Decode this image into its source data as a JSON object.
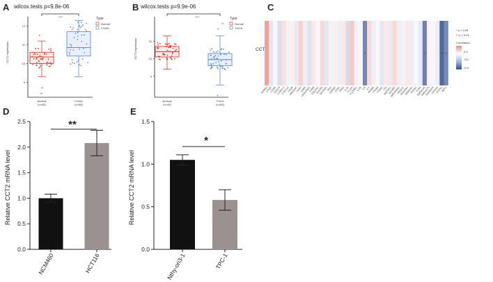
{
  "chart_data": [
    {
      "panel": "A",
      "type": "box",
      "title": "wilcox.tests p=9.8e-06",
      "ylabel": "CCT2 expression",
      "ylim": [
        8.2,
        12.5
      ],
      "yticks": [
        9,
        10,
        11,
        12
      ],
      "legend_title": "Type",
      "significance": "****",
      "groups": [
        {
          "name": "Normal",
          "n_label": "(n=55)",
          "color": "#d83b2b",
          "min": 9.3,
          "q1": 10.0,
          "median": 10.35,
          "q3": 10.6,
          "max": 11.2,
          "outliers": [
            8.7,
            8.4,
            11.5
          ]
        },
        {
          "name": "COAD",
          "n_label": "(n=56)",
          "color": "#5b8dd6",
          "min": 9.3,
          "q1": 10.4,
          "median": 10.85,
          "q3": 11.7,
          "max": 12.3,
          "outliers": []
        }
      ]
    },
    {
      "panel": "B",
      "type": "box",
      "title": "wilcox.tests p=9.9e-06",
      "ylabel": "CCT2 expression",
      "ylim": [
        7.8,
        12.4
      ],
      "yticks": [
        9,
        10,
        11
      ],
      "legend_title": "Type",
      "significance": "****",
      "groups": [
        {
          "name": "Normal",
          "n_label": "(n=45)",
          "color": "#d83b2b",
          "min": 9.4,
          "q1": 10.1,
          "median": 10.4,
          "q3": 10.7,
          "max": 11.3,
          "outliers": []
        },
        {
          "name": "THCA",
          "n_label": "(n=60)",
          "color": "#5b8dd6",
          "min": 8.5,
          "q1": 9.6,
          "median": 9.95,
          "q3": 10.3,
          "max": 11.3,
          "outliers": [
            7.9,
            11.7,
            12.0
          ]
        }
      ]
    },
    {
      "panel": "C",
      "type": "heatmap",
      "row_label": "CCT2",
      "legend_title": "Correlation",
      "legend_ticks": [
        "0.0",
        "-0.2",
        "-0.4"
      ],
      "legend_range": [
        -0.45,
        0.15
      ],
      "sig_legend": [
        "* p < 0.05",
        "** p < 0.01"
      ],
      "columns": [
        "ADRB1",
        "CTNE",
        "CCR5",
        "CD274",
        "CX3CL1",
        "CXCL12",
        "CD28",
        "ARHGAP",
        "CD44",
        "CD80",
        "CEACAM1",
        "CD86",
        "COL4A1",
        "CXCR4",
        "ENTPD1",
        "FAS",
        "GPR82",
        "ICOS",
        "IFNG",
        "IL10",
        "IL12A",
        "IL12RB1",
        "IL1B",
        "IL6",
        "IL7",
        "INHBB",
        "ITGA6",
        "ITGB1",
        "LTA",
        "MAP2K1",
        "MCHR1",
        "MIR155HG",
        "PDCD1",
        "PDGFRA",
        "SEMA3A",
        "TGFB1",
        "TLR4",
        "TMEM140",
        "TMEM173",
        "TNFRSF4",
        "VEGFA",
        "VTCN1",
        "ZBP1"
      ],
      "values": [
        0.12,
        -0.06,
        -0.02,
        -0.08,
        0.04,
        -0.03,
        0.02,
        -0.05,
        0.06,
        -0.04,
        -0.07,
        0.03,
        -0.02,
        0.05,
        -0.06,
        -0.03,
        0.02,
        -0.04,
        0.03,
        -0.09,
        0.07,
        -0.03,
        -0.02,
        -0.3,
        0.05,
        -0.04,
        -0.02,
        -0.06,
        0.03,
        -0.05,
        0.05,
        -0.04,
        -0.03,
        0.03,
        -0.04,
        -0.02,
        -0.05,
        -0.32,
        0.02,
        -0.02,
        -0.04,
        -0.38,
        -0.3
      ],
      "sig": [
        "",
        "",
        "",
        "",
        "",
        "",
        "",
        "",
        "",
        "",
        "",
        "",
        "",
        "",
        "",
        "",
        "",
        "",
        "",
        "",
        "",
        "",
        "",
        "**",
        "",
        "",
        "",
        "",
        "",
        "",
        "",
        "",
        "",
        "",
        "",
        "",
        "",
        "**",
        "",
        "",
        "",
        "**",
        "**"
      ]
    },
    {
      "panel": "D",
      "type": "bar",
      "ylabel": "Relative CCT2 mRNA level",
      "categories": [
        "NCM460",
        "HCT116"
      ],
      "values": [
        1.0,
        2.08
      ],
      "errors": [
        0.08,
        0.25
      ],
      "colors": [
        "#111111",
        "#9a9190"
      ],
      "ylim": [
        0,
        2.5
      ],
      "yticks": [
        "0.0",
        "0.5",
        "1.0",
        "1.5",
        "2.0",
        "2.5"
      ],
      "significance": "**"
    },
    {
      "panel": "E",
      "type": "bar",
      "ylabel": "Relative CCT2 mRNA level",
      "categories": [
        "Nthy-ori3-1",
        "TPC-1"
      ],
      "values": [
        1.05,
        0.58
      ],
      "errors": [
        0.06,
        0.12
      ],
      "colors": [
        "#111111",
        "#9a9190"
      ],
      "ylim": [
        0,
        1.5
      ],
      "yticks": [
        "0.0",
        "0.5",
        "1.0",
        "1.5"
      ],
      "significance": "*"
    }
  ]
}
